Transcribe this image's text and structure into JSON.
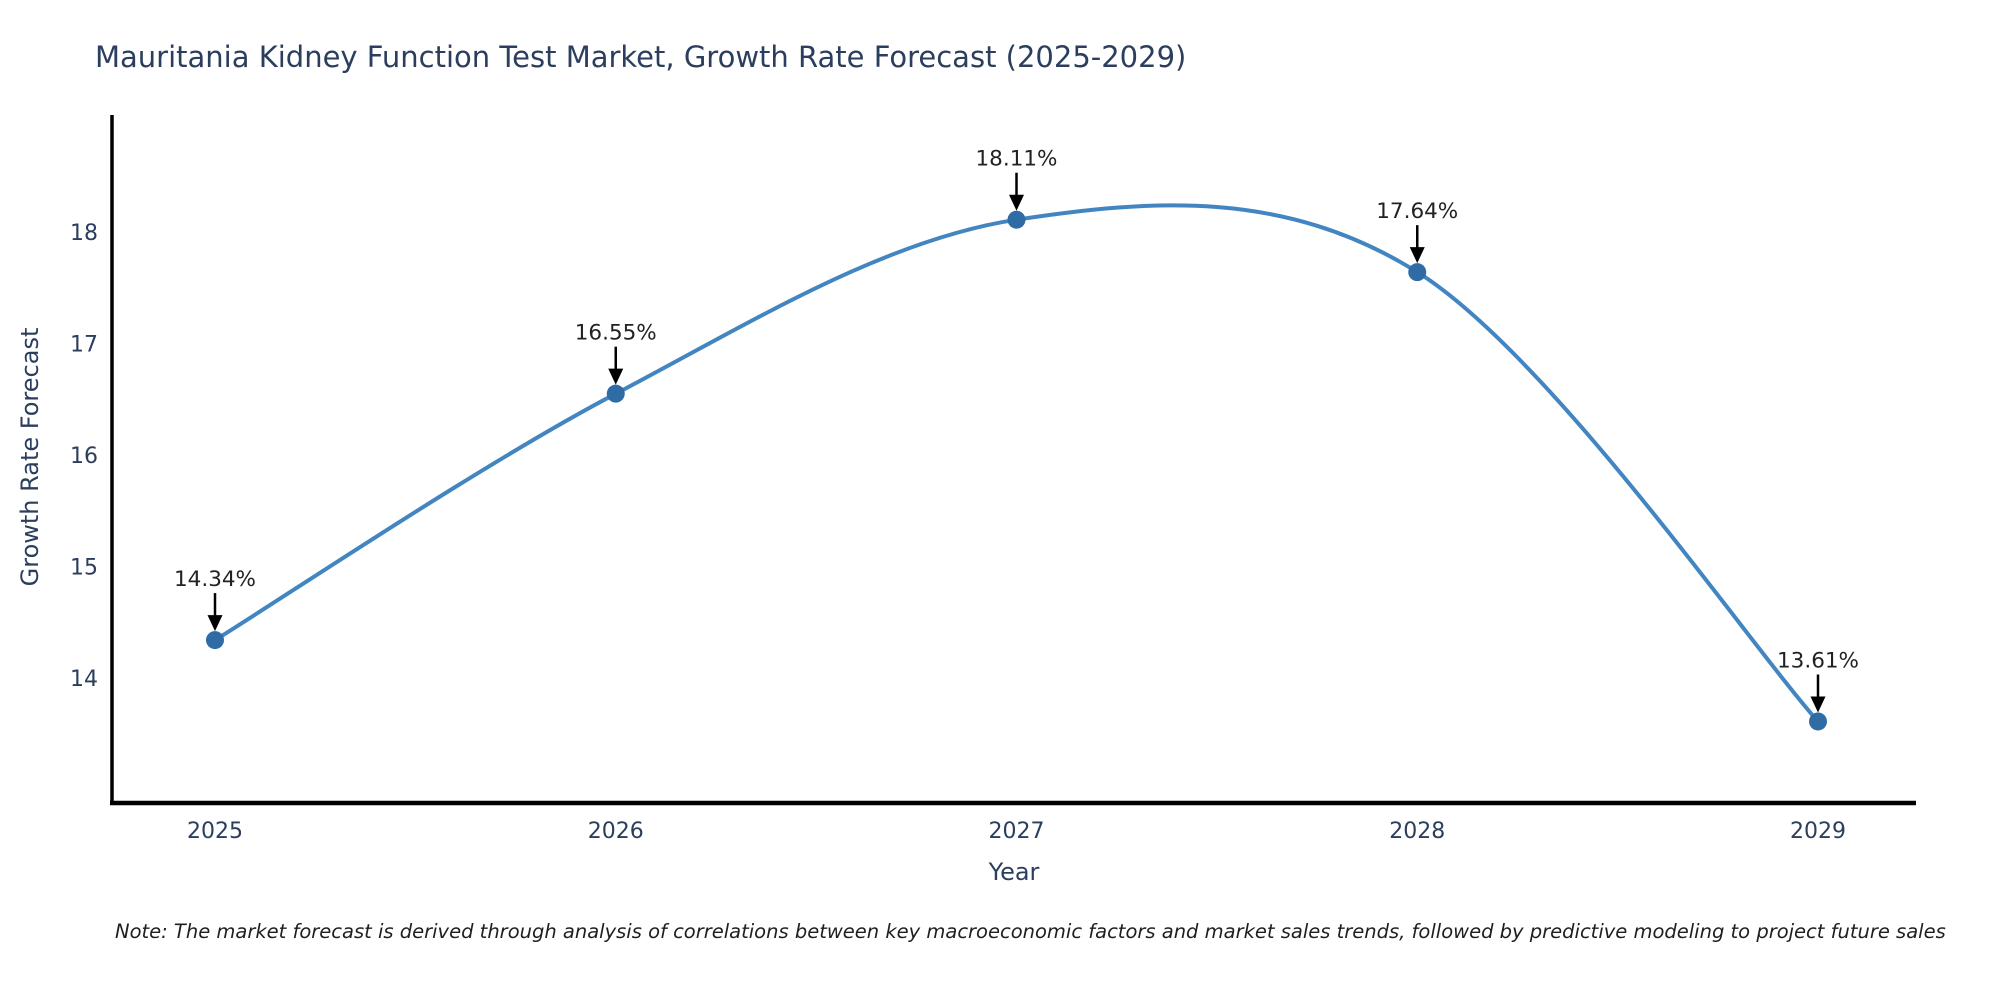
{
  "chart_data": {
    "type": "line",
    "line_shape": "spline",
    "title": "Mauritania Kidney Function Test Market, Growth Rate Forecast (2025-2029)",
    "xlabel": "Year",
    "ylabel": "Growth Rate Forecast",
    "categories": [
      "2025",
      "2026",
      "2027",
      "2028",
      "2029"
    ],
    "values": [
      14.34,
      16.55,
      18.11,
      17.64,
      13.61
    ],
    "point_labels": [
      "14.34%",
      "16.55%",
      "18.11%",
      "17.64%",
      "13.61%"
    ],
    "ytick_values": [
      14,
      15,
      16,
      17,
      18
    ],
    "ylim": [
      12.9,
      19.05
    ],
    "grid": false,
    "legend_position": "none",
    "note": "Note: The market forecast is derived through analysis of correlations between key macroeconomic factors and market sales trends, followed by predictive modeling to project future sales",
    "colors": {
      "line": "#4285c0",
      "marker": "#2f6ca6",
      "axis": "#000000",
      "label_text": "#2c3e5d",
      "annotation_text": "#222222",
      "note_text": "#1f1f1f",
      "background": "#ffffff"
    }
  }
}
